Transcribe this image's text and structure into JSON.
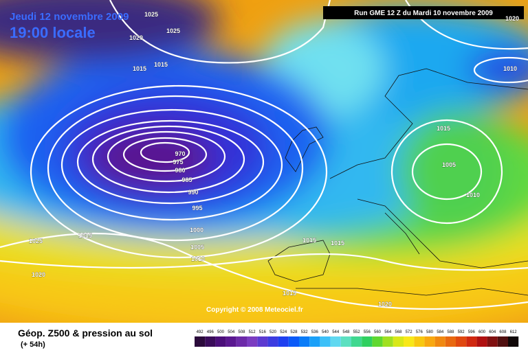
{
  "header": {
    "date": "Jeudi 12 novembre 2009",
    "time": "19:00 locale",
    "run": "Run GME 12 Z du Mardi 10 novembre 2009"
  },
  "copyright": "Copyright © 2008 Meteociel.fr",
  "isobar_labels": [
    1025,
    1025,
    1020,
    1015,
    1015,
    970,
    975,
    980,
    985,
    990,
    995,
    1000,
    1005,
    1010,
    1025,
    1015,
    1020,
    1015,
    1015,
    1015,
    1020,
    1015,
    1005,
    1010,
    1010,
    1020
  ],
  "legend": {
    "title": "Géop. Z500 & pression au sol",
    "lead": "(+ 54h)",
    "labels": [
      492,
      496,
      500,
      504,
      508,
      512,
      516,
      520,
      524,
      528,
      532,
      536,
      540,
      544,
      548,
      552,
      556,
      560,
      564,
      568,
      572,
      576,
      580,
      584,
      588,
      592,
      596,
      600,
      604,
      608,
      612
    ],
    "colors": [
      "#2b0b3b",
      "#3a0c5a",
      "#4b0f7a",
      "#5a1890",
      "#6c2aa8",
      "#7b3cc0",
      "#5c3ad0",
      "#3c3ce0",
      "#1e40f0",
      "#0a5af8",
      "#0a7cf8",
      "#1aa0f8",
      "#3cc0f8",
      "#60d8f0",
      "#5ce0c0",
      "#40d890",
      "#30d060",
      "#60d830",
      "#a0e020",
      "#d8e818",
      "#f8e818",
      "#f8c810",
      "#f8a810",
      "#f08810",
      "#e86810",
      "#e04810",
      "#d02810",
      "#b01010",
      "#801010",
      "#501010",
      "#100808"
    ]
  }
}
